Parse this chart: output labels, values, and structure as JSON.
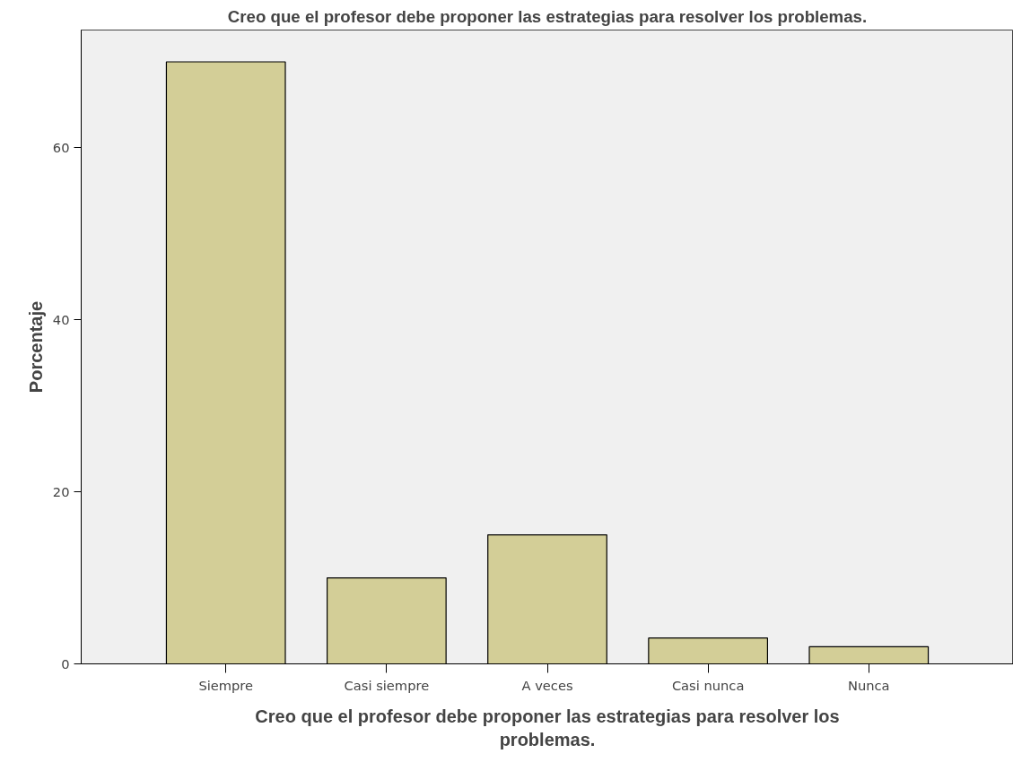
{
  "chart_data": {
    "type": "bar",
    "title": "Creo que el profesor debe proponer las estrategias para resolver los problemas.",
    "xlabel": "Creo que el profesor debe proponer las estrategias para resolver los\nproblemas.",
    "ylabel": "Porcentaje",
    "categories": [
      "Siempre",
      "Casi siempre",
      "A veces",
      "Casi nunca",
      "Nunca"
    ],
    "values": [
      70,
      10,
      15,
      3,
      2
    ],
    "color": "#d3ce97",
    "ylim": [
      0,
      73.7
    ],
    "yticks": [
      0,
      20,
      40,
      60
    ],
    "grid": false
  }
}
